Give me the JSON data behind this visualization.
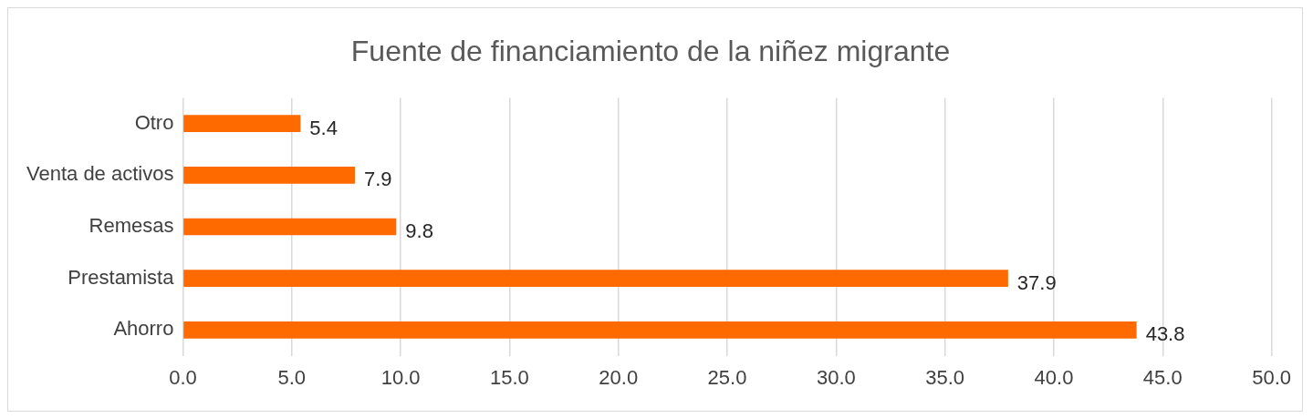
{
  "chart_data": {
    "type": "bar",
    "orientation": "horizontal",
    "title": "Fuente de financiamiento de la niñez migrante",
    "categories": [
      "Otro",
      "Venta de activos",
      "Remesas",
      "Prestamista",
      "Ahorro"
    ],
    "values": [
      5.4,
      7.9,
      9.8,
      37.9,
      43.8
    ],
    "color": "#ff6a00",
    "xlim": [
      0,
      50
    ],
    "xticks": [
      {
        "value": 0,
        "label": "0.0"
      },
      {
        "value": 5,
        "label": "5.0"
      },
      {
        "value": 10,
        "label": "10.0"
      },
      {
        "value": 15,
        "label": "15.0"
      },
      {
        "value": 20,
        "label": "20.0"
      },
      {
        "value": 25,
        "label": "25.0"
      },
      {
        "value": 30,
        "label": "30.0"
      },
      {
        "value": 35,
        "label": "35.0"
      },
      {
        "value": 40,
        "label": "40.0"
      },
      {
        "value": 45,
        "label": "45.0"
      },
      {
        "value": 50,
        "label": "50.0"
      }
    ],
    "grid": "x",
    "data_labels": true
  }
}
